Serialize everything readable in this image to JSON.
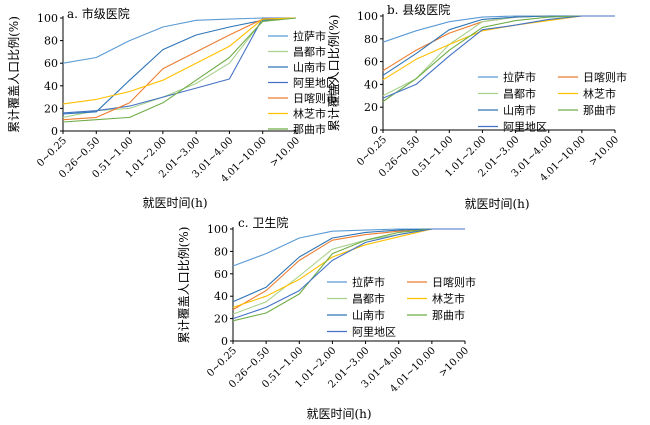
{
  "x_categories": [
    "0~0.25",
    "0.26~0.50",
    "0.51~1.00",
    "1.01~2.00",
    "2.01~3.00",
    "3.01~4.00",
    "4.01~10.00",
    ">10.00"
  ],
  "xlabel": "就医时间(h)",
  "ylabel": "累计覆盖人口比例(%)",
  "colors": {
    "拉萨市": "#5b9bd5",
    "昌都市": "#a9d18e",
    "山南市": "#2e75b6",
    "阿里地区": "#4472c4",
    "日喀则市": "#ed7d31",
    "林芝市": "#ffc000",
    "那曲市": "#70ad47"
  },
  "chart_data": [
    {
      "type": "line",
      "title": "a. 市级医院",
      "ylim": [
        0,
        100
      ],
      "yticks": [
        0,
        20,
        40,
        60,
        80,
        100
      ],
      "legend_position": "right",
      "legend_order": [
        "拉萨市",
        "昌都市",
        "山南市",
        "阿里地区",
        "日喀则市",
        "林芝市",
        "那曲市"
      ],
      "series": [
        {
          "name": "拉萨市",
          "values": [
            60,
            65,
            80,
            92,
            98,
            99,
            100,
            100
          ]
        },
        {
          "name": "昌都市",
          "values": [
            12,
            18,
            20,
            30,
            42,
            60,
            98,
            100
          ]
        },
        {
          "name": "山南市",
          "values": [
            15,
            17,
            45,
            72,
            85,
            92,
            98,
            100
          ]
        },
        {
          "name": "阿里地区",
          "values": [
            16,
            18,
            22,
            30,
            38,
            46,
            100,
            100
          ]
        },
        {
          "name": "日喀则市",
          "values": [
            10,
            12,
            25,
            55,
            70,
            85,
            99,
            100
          ]
        },
        {
          "name": "林芝市",
          "values": [
            24,
            28,
            35,
            45,
            60,
            75,
            99,
            100
          ]
        },
        {
          "name": "那曲市",
          "values": [
            8,
            10,
            12,
            25,
            45,
            65,
            97,
            100
          ]
        }
      ]
    },
    {
      "type": "line",
      "title": "b. 县级医院",
      "ylim": [
        0,
        100
      ],
      "yticks": [
        0,
        20,
        40,
        60,
        80,
        100
      ],
      "legend_position": "right",
      "legend_order": [
        "拉萨市",
        "日喀则市",
        "昌都市",
        "林芝市",
        "山南市",
        "那曲市",
        "阿里地区"
      ],
      "series": [
        {
          "name": "拉萨市",
          "values": [
            77,
            87,
            95,
            99,
            100,
            100,
            100,
            100
          ]
        },
        {
          "name": "日喀则市",
          "values": [
            52,
            70,
            85,
            95,
            99,
            100,
            100,
            100
          ]
        },
        {
          "name": "昌都市",
          "values": [
            30,
            45,
            75,
            95,
            99,
            100,
            100,
            100
          ]
        },
        {
          "name": "林芝市",
          "values": [
            44,
            62,
            75,
            87,
            92,
            96,
            100,
            100
          ]
        },
        {
          "name": "山南市",
          "values": [
            48,
            67,
            88,
            97,
            99,
            100,
            100,
            100
          ]
        },
        {
          "name": "那曲市",
          "values": [
            25,
            45,
            70,
            90,
            96,
            99,
            100,
            100
          ]
        },
        {
          "name": "阿里地区",
          "values": [
            28,
            40,
            65,
            88,
            92,
            97,
            100,
            100
          ]
        }
      ]
    },
    {
      "type": "line",
      "title": "c. 卫生院",
      "ylim": [
        0,
        100
      ],
      "yticks": [
        0,
        20,
        40,
        60,
        80,
        100
      ],
      "legend_position": "right",
      "legend_order": [
        "拉萨市",
        "日喀则市",
        "昌都市",
        "林芝市",
        "山南市",
        "那曲市",
        "阿里地区"
      ],
      "series": [
        {
          "name": "拉萨市",
          "values": [
            67,
            78,
            92,
            98,
            99,
            100,
            100,
            100
          ]
        },
        {
          "name": "日喀则市",
          "values": [
            28,
            45,
            72,
            90,
            95,
            98,
            100,
            100
          ]
        },
        {
          "name": "昌都市",
          "values": [
            24,
            35,
            58,
            82,
            90,
            95,
            100,
            100
          ]
        },
        {
          "name": "林芝市",
          "values": [
            30,
            40,
            55,
            75,
            86,
            93,
            100,
            100
          ]
        },
        {
          "name": "山南市",
          "values": [
            35,
            48,
            75,
            92,
            97,
            99,
            100,
            100
          ]
        },
        {
          "name": "那曲市",
          "values": [
            18,
            25,
            42,
            78,
            90,
            97,
            100,
            100
          ]
        },
        {
          "name": "阿里地区",
          "values": [
            20,
            30,
            45,
            72,
            88,
            95,
            100,
            100
          ]
        }
      ]
    }
  ]
}
